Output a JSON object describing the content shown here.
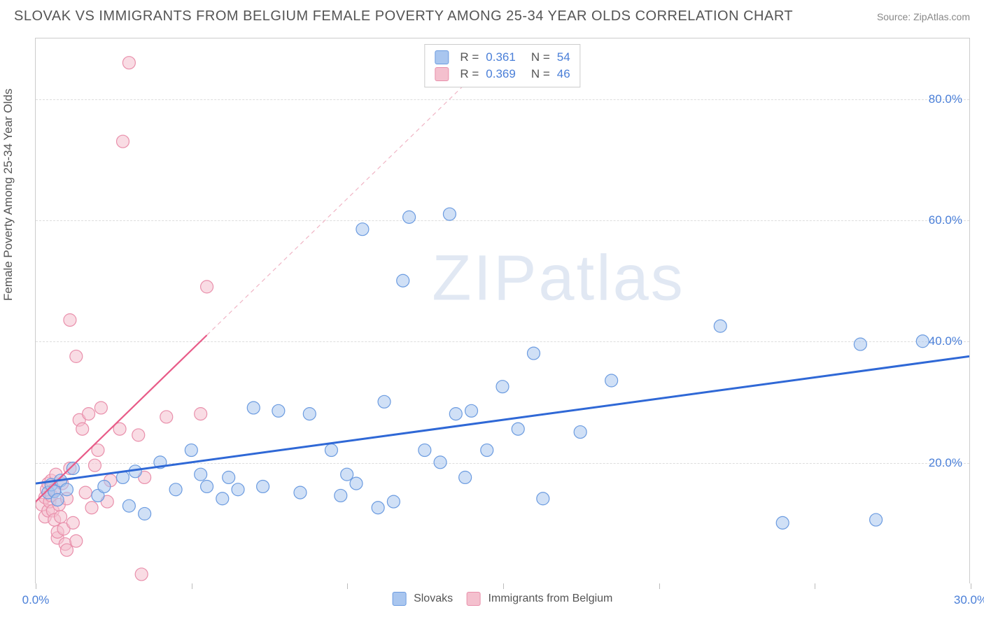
{
  "title": "SLOVAK VS IMMIGRANTS FROM BELGIUM FEMALE POVERTY AMONG 25-34 YEAR OLDS CORRELATION CHART",
  "source": "Source: ZipAtlas.com",
  "y_axis_label": "Female Poverty Among 25-34 Year Olds",
  "watermark": "ZIPatlas",
  "chart": {
    "type": "scatter",
    "xlim": [
      0,
      30
    ],
    "ylim": [
      0,
      90
    ],
    "x_ticks": [
      0,
      5,
      10,
      15,
      20,
      25,
      30
    ],
    "x_tick_labels_shown": {
      "0": "0.0%",
      "30": "30.0%"
    },
    "y_ticks": [
      20,
      40,
      60,
      80
    ],
    "y_tick_labels": [
      "20.0%",
      "40.0%",
      "60.0%",
      "80.0%"
    ],
    "grid_color": "#dddddd",
    "background_color": "#ffffff",
    "marker_radius": 9,
    "marker_opacity": 0.55,
    "series": [
      {
        "name": "Slovaks",
        "color_fill": "#a9c6ef",
        "color_stroke": "#6b9be0",
        "r_value": "0.361",
        "n_value": "54",
        "trend": {
          "x1": 0,
          "y1": 16.5,
          "x2": 30,
          "y2": 37.5,
          "width": 3,
          "dash": null,
          "color": "#2f68d6"
        },
        "trend_ext": null,
        "points": [
          [
            0.4,
            15.0
          ],
          [
            0.5,
            16.3
          ],
          [
            0.6,
            15.2
          ],
          [
            0.7,
            13.8
          ],
          [
            0.8,
            17.0
          ],
          [
            1.0,
            15.5
          ],
          [
            1.2,
            19.0
          ],
          [
            2.0,
            14.5
          ],
          [
            2.2,
            16.0
          ],
          [
            2.8,
            17.5
          ],
          [
            3.0,
            12.8
          ],
          [
            3.2,
            18.5
          ],
          [
            3.5,
            11.5
          ],
          [
            4.0,
            20.0
          ],
          [
            4.5,
            15.5
          ],
          [
            5.0,
            22.0
          ],
          [
            5.3,
            18.0
          ],
          [
            5.5,
            16.0
          ],
          [
            6.0,
            14.0
          ],
          [
            6.2,
            17.5
          ],
          [
            6.5,
            15.5
          ],
          [
            7.0,
            29.0
          ],
          [
            7.3,
            16.0
          ],
          [
            7.8,
            28.5
          ],
          [
            8.5,
            15.0
          ],
          [
            8.8,
            28.0
          ],
          [
            9.5,
            22.0
          ],
          [
            9.8,
            14.5
          ],
          [
            10.0,
            18.0
          ],
          [
            10.3,
            16.5
          ],
          [
            10.5,
            58.5
          ],
          [
            11.0,
            12.5
          ],
          [
            11.2,
            30.0
          ],
          [
            11.5,
            13.5
          ],
          [
            11.8,
            50.0
          ],
          [
            12.0,
            60.5
          ],
          [
            12.5,
            22.0
          ],
          [
            13.0,
            20.0
          ],
          [
            13.3,
            61.0
          ],
          [
            13.5,
            28.0
          ],
          [
            13.8,
            17.5
          ],
          [
            14.0,
            28.5
          ],
          [
            14.5,
            22.0
          ],
          [
            15.0,
            32.5
          ],
          [
            15.5,
            25.5
          ],
          [
            16.0,
            38.0
          ],
          [
            16.3,
            14.0
          ],
          [
            17.5,
            25.0
          ],
          [
            18.5,
            33.5
          ],
          [
            22.0,
            42.5
          ],
          [
            24.0,
            10.0
          ],
          [
            26.5,
            39.5
          ],
          [
            27.0,
            10.5
          ],
          [
            28.5,
            40.0
          ]
        ]
      },
      {
        "name": "Immigrants from Belgium",
        "color_fill": "#f4c0ce",
        "color_stroke": "#e98fab",
        "r_value": "0.369",
        "n_value": "46",
        "trend": {
          "x1": 0,
          "y1": 13.5,
          "x2": 5.5,
          "y2": 41.0,
          "width": 2.2,
          "dash": null,
          "color": "#e85b88"
        },
        "trend_ext": {
          "x1": 5.5,
          "y1": 41.0,
          "x2": 14.5,
          "y2": 86.0,
          "width": 1.2,
          "dash": "6,5",
          "color": "#f0b5c5"
        },
        "points": [
          [
            0.2,
            13.0
          ],
          [
            0.3,
            14.2
          ],
          [
            0.3,
            11.0
          ],
          [
            0.35,
            15.5
          ],
          [
            0.4,
            12.0
          ],
          [
            0.4,
            16.5
          ],
          [
            0.45,
            13.5
          ],
          [
            0.5,
            17.0
          ],
          [
            0.5,
            14.5
          ],
          [
            0.55,
            12.0
          ],
          [
            0.6,
            15.5
          ],
          [
            0.6,
            10.5
          ],
          [
            0.65,
            18.0
          ],
          [
            0.7,
            7.5
          ],
          [
            0.7,
            8.5
          ],
          [
            0.75,
            13.0
          ],
          [
            0.8,
            11.0
          ],
          [
            0.85,
            16.5
          ],
          [
            0.9,
            9.0
          ],
          [
            0.95,
            6.5
          ],
          [
            1.0,
            14.0
          ],
          [
            1.0,
            5.5
          ],
          [
            1.1,
            19.0
          ],
          [
            1.1,
            43.5
          ],
          [
            1.2,
            10.0
          ],
          [
            1.3,
            37.5
          ],
          [
            1.3,
            7.0
          ],
          [
            1.4,
            27.0
          ],
          [
            1.5,
            25.5
          ],
          [
            1.6,
            15.0
          ],
          [
            1.7,
            28.0
          ],
          [
            1.8,
            12.5
          ],
          [
            1.9,
            19.5
          ],
          [
            2.0,
            22.0
          ],
          [
            2.1,
            29.0
          ],
          [
            2.3,
            13.5
          ],
          [
            2.4,
            17.0
          ],
          [
            2.7,
            25.5
          ],
          [
            2.8,
            73.0
          ],
          [
            3.0,
            86.0
          ],
          [
            3.3,
            24.5
          ],
          [
            3.4,
            1.5
          ],
          [
            3.5,
            17.5
          ],
          [
            4.2,
            27.5
          ],
          [
            5.3,
            28.0
          ],
          [
            5.5,
            49.0
          ]
        ]
      }
    ]
  },
  "legend_labels": {
    "slovaks": "Slovaks",
    "belgium": "Immigrants from Belgium"
  },
  "stats_labels": {
    "r": "R =",
    "n": "N ="
  }
}
